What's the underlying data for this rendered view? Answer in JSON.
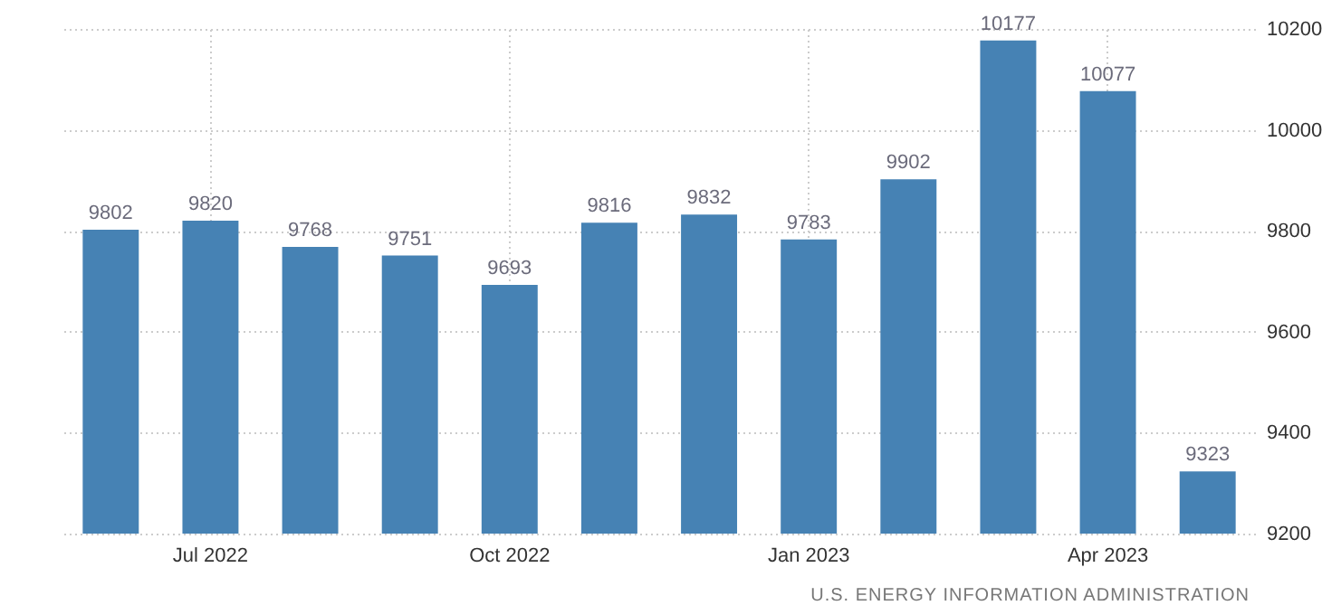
{
  "chart_data": {
    "type": "bar",
    "categories": [
      null,
      "Jul 2022",
      null,
      null,
      "Oct 2022",
      null,
      null,
      "Jan 2023",
      null,
      null,
      "Apr 2023",
      null
    ],
    "values": [
      9802,
      9820,
      9768,
      9751,
      9693,
      9816,
      9832,
      9783,
      9902,
      10177,
      10077,
      9323
    ],
    "color": "#4682b4",
    "ylim": [
      9200,
      10200
    ],
    "yticks": [
      9200,
      9400,
      9600,
      9800,
      10000,
      10200
    ],
    "grid": true,
    "data_labels": true,
    "annotations": [
      "U.S. ENERGY INFORMATION ADMINISTRATION"
    ]
  }
}
